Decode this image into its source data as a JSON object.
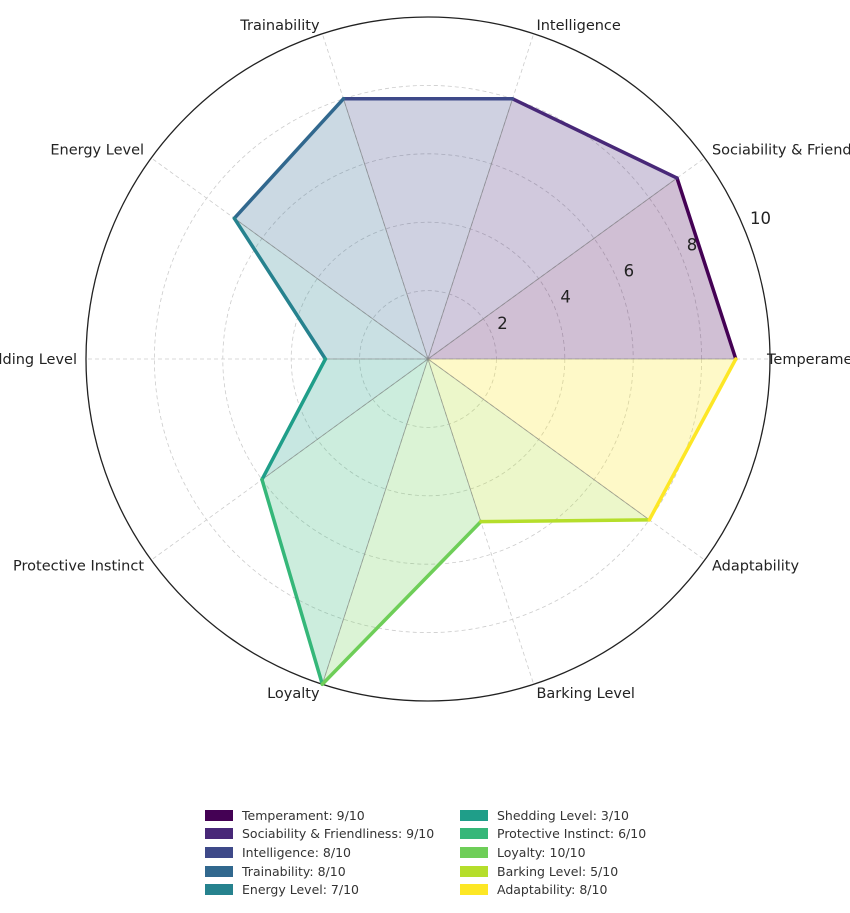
{
  "chart_data": {
    "type": "radar",
    "title": "",
    "rmax": 10,
    "radial_ticks": [
      2,
      4,
      6,
      8,
      10
    ],
    "radial_tick_labels": [
      "2",
      "4",
      "6",
      "8",
      "10"
    ],
    "grid": true,
    "legend_position": "bottom-center",
    "categories": [
      "Temperament",
      "Sociability & Friendliness",
      "Intelligence",
      "Trainability",
      "Energy Level",
      "Shedding Level",
      "Protective Instinct",
      "Loyalty",
      "Barking Level",
      "Adaptability"
    ],
    "values": [
      9,
      9,
      8,
      8,
      7,
      3,
      6,
      10,
      5,
      8
    ],
    "colors": [
      "#440154",
      "#482878",
      "#3e4989",
      "#31688e",
      "#26828e",
      "#1f9e89",
      "#35b779",
      "#6ece58",
      "#b5de2b",
      "#fde725"
    ],
    "legend": [
      "Temperament: 9/10",
      "Sociability & Friendliness: 9/10",
      "Intelligence: 8/10",
      "Trainability: 8/10",
      "Energy Level: 7/10",
      "Shedding Level: 3/10",
      "Protective Instinct: 6/10",
      "Loyalty: 10/10",
      "Barking Level: 5/10",
      "Adaptability: 8/10"
    ]
  }
}
